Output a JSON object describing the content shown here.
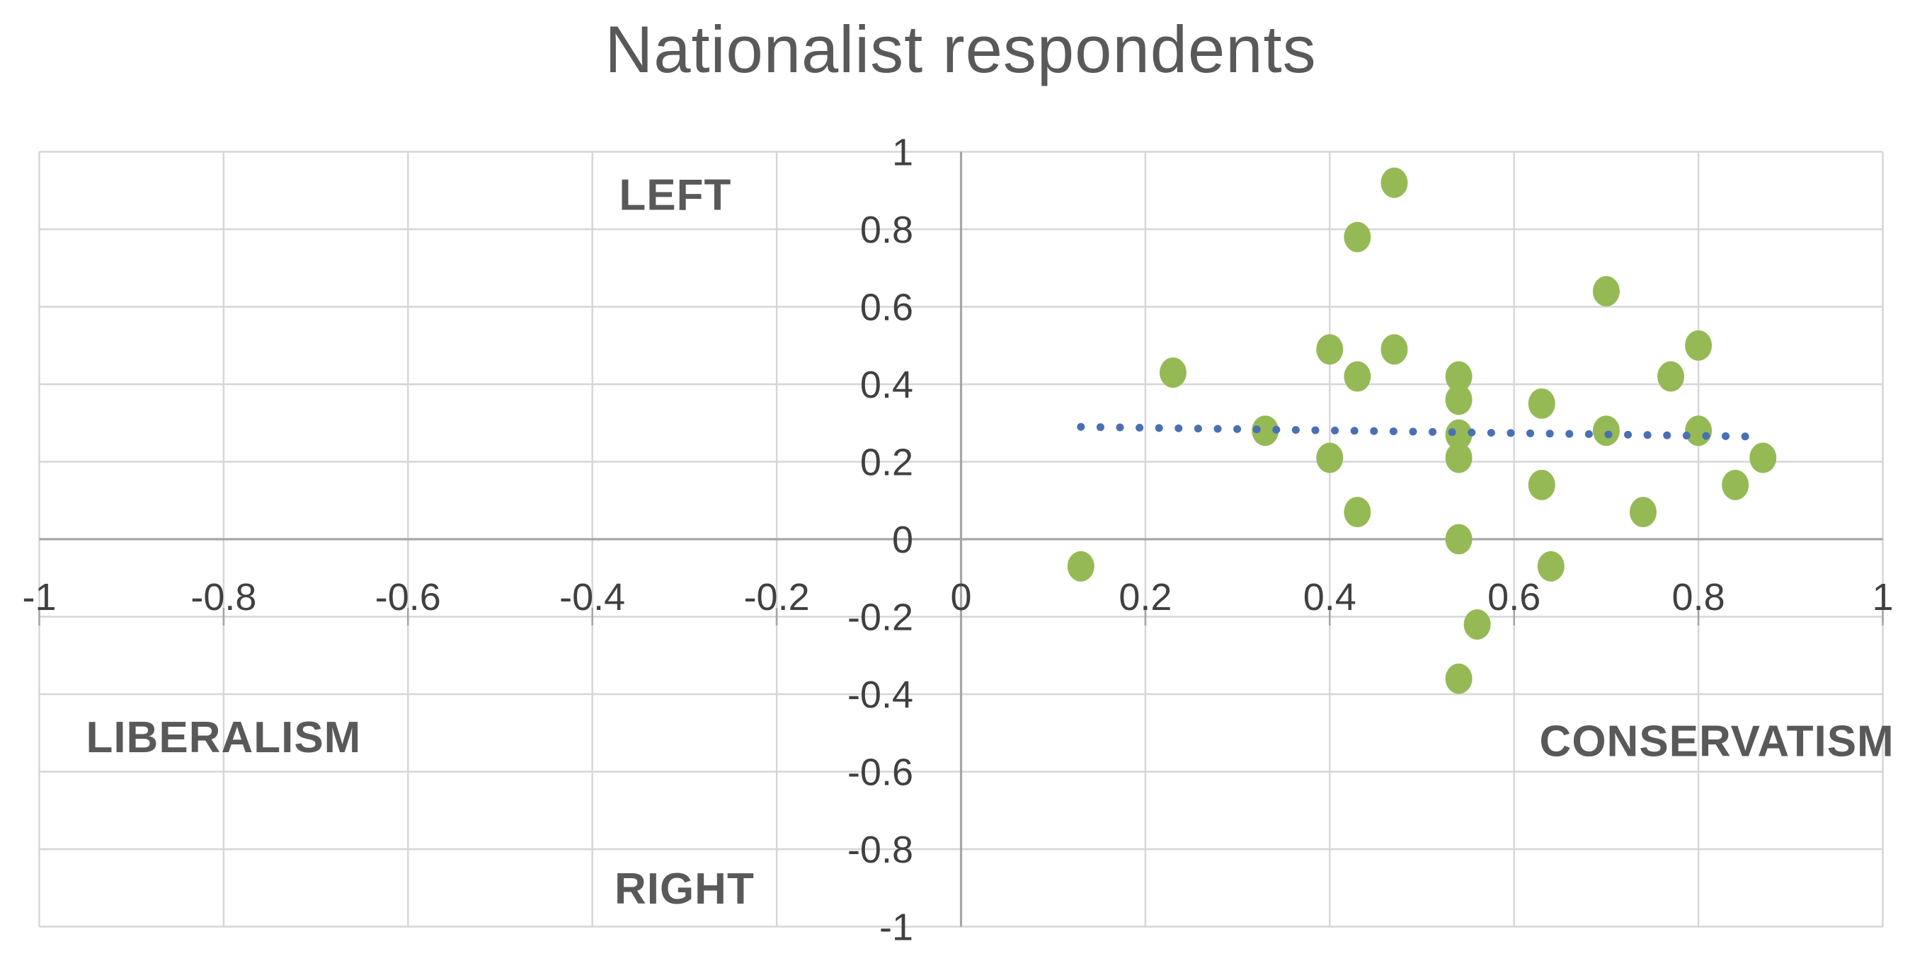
{
  "title": {
    "text": "Nationalist respondents"
  },
  "chart_data": {
    "type": "scatter",
    "title": "Nationalist respondents",
    "xlabel": "",
    "ylabel": "",
    "xlim": [
      -1,
      1
    ],
    "ylim": [
      -1,
      1
    ],
    "grid": true,
    "legend": "none",
    "x_tick_values": [
      -1,
      -0.8,
      -0.6,
      -0.4,
      -0.2,
      0,
      0.2,
      0.4,
      0.6,
      0.8,
      1
    ],
    "x_tick_labels": [
      "-1",
      "-0.8",
      "-0.6",
      "-0.4",
      "-0.2",
      "0",
      "0.2",
      "0.4",
      "0.6",
      "0.8",
      "1"
    ],
    "y_tick_values": [
      1,
      0.8,
      0.6,
      0.4,
      0.2,
      0,
      -0.2,
      -0.4,
      -0.6,
      -0.8,
      -1
    ],
    "y_tick_labels": [
      "1",
      "0.8",
      "0.6",
      "0.4",
      "0.2",
      "0",
      "-0.2",
      "-0.4",
      "-0.6",
      "-0.8",
      "-1"
    ],
    "series": [
      {
        "name": "Nationalist respondents",
        "marker": "circle",
        "color": "#95ba55",
        "points": [
          [
            0.13,
            -0.07
          ],
          [
            0.23,
            0.43
          ],
          [
            0.33,
            0.28
          ],
          [
            0.4,
            0.49
          ],
          [
            0.4,
            0.21
          ],
          [
            0.43,
            0.78
          ],
          [
            0.43,
            0.42
          ],
          [
            0.43,
            0.07
          ],
          [
            0.47,
            0.92
          ],
          [
            0.47,
            0.49
          ],
          [
            0.54,
            0.42
          ],
          [
            0.54,
            0.36
          ],
          [
            0.54,
            0.27
          ],
          [
            0.54,
            0.21
          ],
          [
            0.54,
            0.0
          ],
          [
            0.54,
            -0.36
          ],
          [
            0.56,
            -0.22
          ],
          [
            0.63,
            0.35
          ],
          [
            0.63,
            0.14
          ],
          [
            0.64,
            -0.07
          ],
          [
            0.7,
            0.64
          ],
          [
            0.7,
            0.28
          ],
          [
            0.74,
            0.07
          ],
          [
            0.77,
            0.42
          ],
          [
            0.8,
            0.5
          ],
          [
            0.8,
            0.28
          ],
          [
            0.84,
            0.14
          ],
          [
            0.87,
            0.21
          ]
        ]
      }
    ],
    "trendline": {
      "type": "linear",
      "style": "dotted",
      "color": "#4a70b4",
      "start": [
        0.13,
        0.29
      ],
      "end": [
        0.86,
        0.265
      ]
    },
    "annotations": [
      {
        "id": "left",
        "text": "LEFT",
        "x": -0.31,
        "y": 0.89
      },
      {
        "id": "right",
        "text": "RIGHT",
        "x": -0.3,
        "y": -0.9
      },
      {
        "id": "liberalism",
        "text": "LIBERALISM",
        "x": -0.8,
        "y": -0.51
      },
      {
        "id": "conservatism",
        "text": "CONSERVATISM",
        "x": 0.82,
        "y": -0.52
      }
    ]
  },
  "colors": {
    "marker": "#95ba55",
    "trendline": "#4a70b4",
    "gridline": "#d6d6d6",
    "axis_line": "#a6a6a6",
    "tick_text": "#404040",
    "title_text": "#595959",
    "annotation_text": "#595959",
    "background": "#ffffff"
  }
}
